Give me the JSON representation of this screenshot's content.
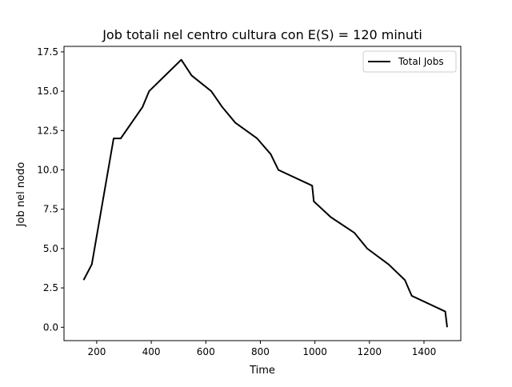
{
  "chart_data": {
    "type": "line",
    "title": "Job totali nel centro cultura con E(S) = 120 minuti",
    "xlabel": "Time",
    "ylabel": "Job nel nodo",
    "xlim": [
      80,
      1535
    ],
    "ylim": [
      -0.85,
      17.85
    ],
    "x_ticks": [
      200,
      400,
      600,
      800,
      1000,
      1200,
      1400
    ],
    "x_tick_labels": [
      "200",
      "400",
      "600",
      "800",
      "1000",
      "1200",
      "1400"
    ],
    "y_ticks": [
      0,
      2.5,
      5,
      7.5,
      10,
      12.5,
      15,
      17.5
    ],
    "y_tick_labels": [
      "0.0",
      "2.5",
      "5.0",
      "7.5",
      "10.0",
      "12.5",
      "15.0",
      "17.5"
    ],
    "grid": false,
    "legend_position": "top-right",
    "series": [
      {
        "name": "Total Jobs",
        "color": "#000000",
        "points": [
          [
            152,
            3
          ],
          [
            182,
            4
          ],
          [
            262,
            12
          ],
          [
            288,
            12
          ],
          [
            368,
            14
          ],
          [
            392,
            15
          ],
          [
            510,
            17
          ],
          [
            548,
            16
          ],
          [
            620,
            15
          ],
          [
            660,
            14
          ],
          [
            708,
            13
          ],
          [
            788,
            12
          ],
          [
            838,
            11
          ],
          [
            866,
            10
          ],
          [
            990,
            9
          ],
          [
            996,
            8
          ],
          [
            1058,
            7
          ],
          [
            1145,
            6
          ],
          [
            1192,
            5
          ],
          [
            1270,
            4
          ],
          [
            1330,
            3
          ],
          [
            1355,
            2
          ],
          [
            1478,
            1
          ],
          [
            1485,
            0
          ]
        ]
      }
    ]
  }
}
